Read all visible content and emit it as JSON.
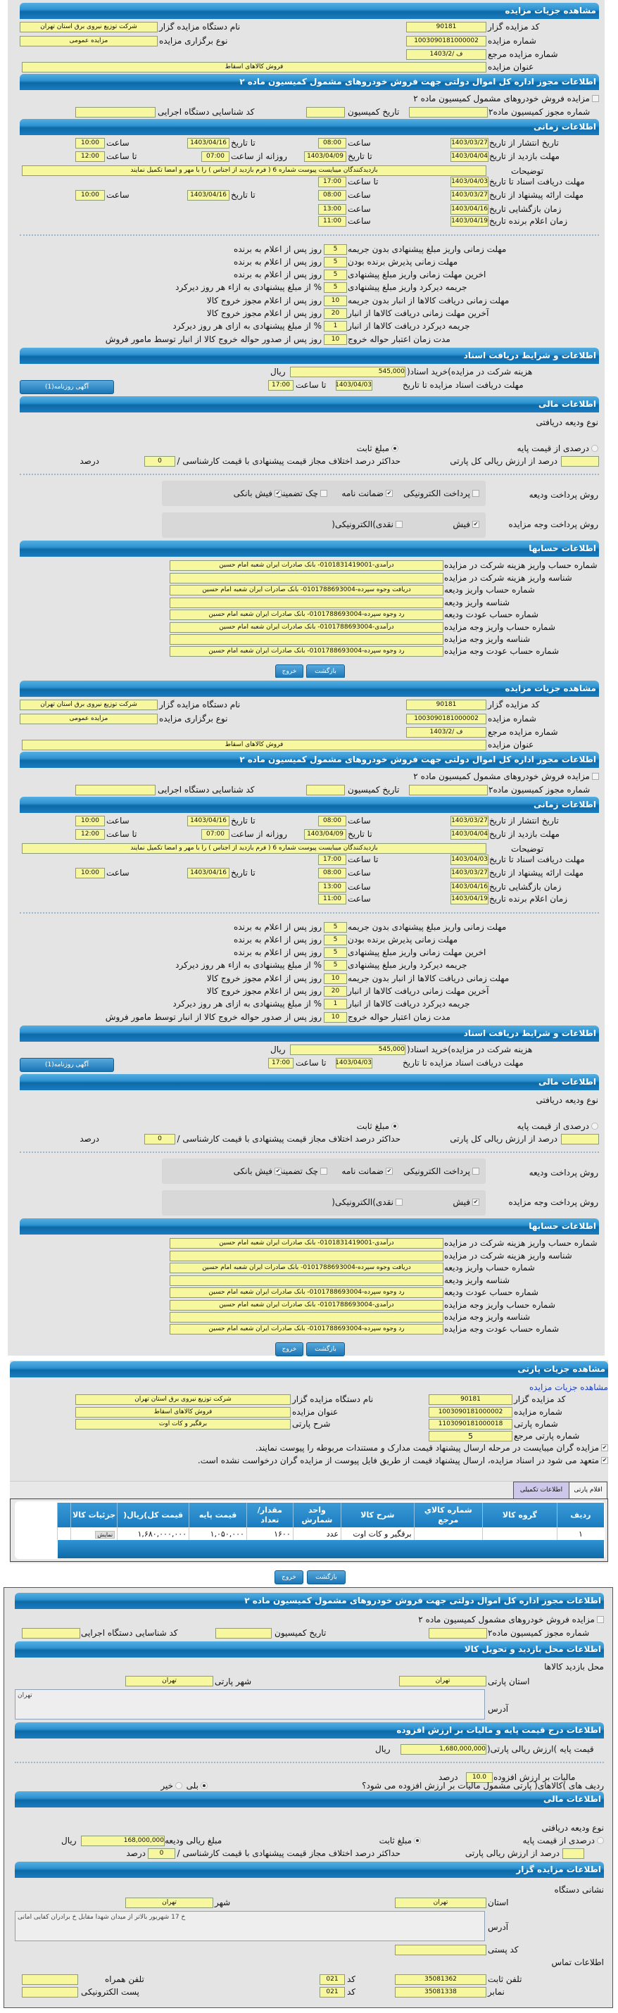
{
  "auction": {
    "title": "مشاهده جزیات مزایده",
    "org_code_label": "کد مزایده گزار",
    "org_code": "90181",
    "org_name_label": "نام دستگاه مزایده گزار",
    "org_name": "شرکت توزیع نیروی برق استان تهران",
    "number_label": "شماره مزایده",
    "number": "1003090181000002",
    "type_label": "نوع برگزاری مزایده",
    "type": "مزایده عمومی",
    "ref_label": "شماره مزایده مرجع",
    "ref": "ف /1403/2",
    "subject_label": "عنوان مزایده",
    "subject": "فروش کالاهای اسقاط"
  },
  "permit": {
    "title": "اطلاعات مجوز اداره کل اموال دولتی جهت فروش خودروهای مشمول کمیسیون ماده ۲",
    "checkbox_label": "مزایده فروش خودروهای مشمول کمیسیون ماده ۲",
    "checked": false,
    "permit_no_label": "شماره مجوز کمیسیون ماده۲",
    "date_label": "تاریخ کمیسیون",
    "exec_code_label": "کد شناسایی دستگاه اجرایی"
  },
  "timing": {
    "title": "اطلاعات زمانی",
    "publish": {
      "label": "تاریخ انتشار از تاریخ",
      "from_date": "1403/03/27",
      "time_label": "ساعت",
      "from_time": "08:00",
      "to_label": "تا تاریخ",
      "to_date": "1403/04/16",
      "to_time_label": "ساعت",
      "to_time": "10:00"
    },
    "visit": {
      "label": "مهلت بازدید از تاریخ",
      "from_date": "1403/04/04",
      "to_label": "تا تاریخ",
      "to_date": "1403/04/09",
      "daily_label": "روزانه از ساعت",
      "from_time": "07:00",
      "to_time_label": "تا ساعت",
      "to_time": "12:00"
    },
    "description_label": "توضیحات",
    "description": "بازدیدکنندگان میبایست پیوست شماره 6 ( فرم بازدید از اجناس ) را با مهر و امضا تکمیل نمایند",
    "docs_deadline": {
      "label": "مهلت دریافت اسناد تا تاریخ",
      "date": "1403/04/03",
      "time_label": "تا ساعت",
      "time": "17:00"
    },
    "offer": {
      "label": "مهلت ارائه پیشنهاد از تاریخ",
      "from_date": "1403/03/27",
      "time_label": "ساعت",
      "from_time": "08:00",
      "to_label": "تا تاریخ",
      "to_date": "1403/04/16",
      "to_time_label": "ساعت",
      "to_time": "10:00"
    },
    "opening": {
      "label": "زمان بازگشایی   تاریخ",
      "date": "1403/04/16",
      "time_label": "ساعت",
      "time": "13:00"
    },
    "winner": {
      "label": "زمان اعلام برنده   تاریخ",
      "date": "1403/04/19",
      "time_label": "ساعت",
      "time": "11:00"
    }
  },
  "deadlines": [
    {
      "label": "مهلت زمانی واریز مبلغ پیشنهادی بدون جریمه",
      "value": "5",
      "suffix": "روز پس از اعلام به برنده"
    },
    {
      "label": "مهلت زمانی پذیرش برنده بودن",
      "value": "5",
      "suffix": "روز پس از اعلام به برنده"
    },
    {
      "label": "اخرین مهلت زمانی واریز مبلغ پیشنهادی",
      "value": "5",
      "suffix": "روز پس از اعلام به برنده"
    },
    {
      "label": "جریمه دیرکرد واریز مبلغ پیشنهادی",
      "value": "5",
      "suffix": "% از مبلغ پیشنهادی به ازاء هر روز دیرکرد"
    },
    {
      "label": "مهلت زمانی دریافت کالاها از انبار بدون جریمه",
      "value": "10",
      "suffix": "روز پس از اعلام مجوز خروج کالا"
    },
    {
      "label": "آخرین مهلت زمانی دریافت کالاها از انبار",
      "value": "20",
      "suffix": "روز پس از اعلام مجوز خروج کالا"
    },
    {
      "label": "جریمه دیرکرد دریافت کالاها از انبار",
      "value": "1",
      "suffix": "% از مبلغ پیشنهادی به ازای هر روز دیرکرد"
    },
    {
      "label": "مدت زمان اعتبار حواله خروج",
      "value": "10",
      "suffix": "روز پس از صدور حواله خروج کالا از انبار توسط مامور فروش"
    }
  ],
  "documents": {
    "title": "اطلاعات و شرایط دریافت اسناد",
    "cost_label": "هزینه شرکت در مزایده)خرید اسناد(",
    "cost": "545,000",
    "currency": "ریال",
    "deadline_label": "مهلت دریافت اسناد مزایده تا تاریخ",
    "deadline_date": "1403/04/03",
    "until_time_label": "تا ساعت",
    "deadline_time": "17:00",
    "newspaper_button": "آگهی روزنامه(1)"
  },
  "finance": {
    "title": "اطلاعات مالی",
    "deposit_type_label": "نوع ودیعه دریافتی",
    "percent_option": "درصدی از قیمت پایه",
    "fixed_option": "مبلغ ثابت",
    "selected": "fixed",
    "percent_of_label": "درصد از ارزش ریالی کل پارتی",
    "max_diff_label": "حداکثر درصد اختلاف مجاز قیمت پیشنهادی با قیمت کارشناسی / پایه",
    "max_diff": "0",
    "percent_unit": "درصد",
    "deposit_method_label": "روش پرداخت ودیعه",
    "deposit_methods": [
      {
        "label": "پرداخت الکترونیکی",
        "checked": false
      },
      {
        "label": "ضمانت نامه",
        "checked": true
      },
      {
        "label": "چک تضمینی",
        "checked": false
      },
      {
        "label": "فیش بانکی",
        "checked": true
      }
    ],
    "payment_method_label": "روش پرداخت وجه مزایده",
    "payment_methods": [
      {
        "label": "فیش",
        "checked": true
      },
      {
        "label": "نقدی)الکترونیکی(",
        "checked": false
      }
    ]
  },
  "accounts": {
    "title": "اطلاعات حسابها",
    "rows": [
      {
        "label": "شماره حساب واریز هزینه شرکت در مزایده",
        "value": "درآمدی-0101831419001- بانک صادرات ایران شعبه امام حسین"
      },
      {
        "label": "شناسه واریز هزینه شرکت در مزایده",
        "value": ""
      },
      {
        "label": "شماره حساب واریز ودیعه",
        "value": "دریافت وجوه سپرده-0101788693004- بانک صادرات ایران شعبه امام حسین"
      },
      {
        "label": "شناسه واریز ودیعه",
        "value": ""
      },
      {
        "label": "شماره حساب عودت ودیعه",
        "value": "رد وجوه سپرده-0101788693004- بانک صادرات ایران شعبه امام حسین"
      },
      {
        "label": "شماره حساب واریز وجه مزایده",
        "value": "درآمدی-0101788693004- بانک صادرات ایران شعبه امام حسین"
      },
      {
        "label": "شناسه واریز وجه مزایده",
        "value": ""
      },
      {
        "label": "شماره حساب عودت وجه مزایده",
        "value": "رد وجوه سپرده-0101788693004- بانک صادرات ایران شعبه امام حسین"
      }
    ]
  },
  "buttons": {
    "back": "بازگشت",
    "exit": "خروج"
  },
  "party": {
    "title": "مشاهده جزیات پارتی",
    "auction_link": "مشاهده جزیات مزایده",
    "org_code_label": "کد مزایده گزار",
    "org_code": "90181",
    "org_name_label": "نام دستگاه مزایده گزار",
    "org_name": "شرکت توزیع نیروی برق استان تهران",
    "number_label": "شماره مزایده",
    "number": "1003090181000002",
    "subject_label": "عنوان مزایده",
    "subject": "فروش کالاهای اسقاط",
    "party_no_label": "شماره پارتی",
    "party_no": "1103090181000018",
    "party_desc_label": "شرح پارتی",
    "party_desc": "برقگیر و کات اوت",
    "party_ref_label": "شماره پارتی مرجع",
    "party_ref": "5",
    "notice1": "مزایده گران میبایست در مرحله ارسال پیشنهاد قیمت مدارک و مستندات مربوطه را پیوست نمایند.",
    "notice1_checked": true,
    "notice2": "متعهد می شود در اسناد مزایده، ارسال پیشنهاد قیمت از طریق فایل پیوست از مزایده گران درخواست نشده است.",
    "notice2_checked": true,
    "tabs": [
      {
        "label": "اقلام پارتی"
      },
      {
        "label": "اطلاعات تکمیلی"
      }
    ]
  },
  "items_table": {
    "columns": [
      "ردیف",
      "گروه کالا",
      "شماره کالاي مرجع",
      "شرح کالا",
      "واحد شمارش",
      "مقدار/ تعداد",
      "قیمت پایه",
      "قیمت کل)ریال(",
      "جزئیات کالا"
    ],
    "rows": [
      {
        "row": "۱",
        "group": "",
        "ref_code": "",
        "desc": "برقگیر و کات اوت",
        "unit": "عدد",
        "qty": "۱۶۰۰",
        "base_price": "۱,۰۵۰,۰۰۰",
        "total": "۱,۶۸۰,۰۰۰,۰۰۰",
        "details": "نمایش"
      }
    ]
  },
  "details": {
    "permit_title": "اطلاعات مجوز اداره کل اموال دولتی جهت فروش خودروهای مشمول کمیسیون ماده ۲",
    "location_title": "اطلاعات محل بازدید و تحویل کالا",
    "visit_place_label": "محل بازدید کالاها",
    "province_label": "استان پارتی",
    "province": "تهران",
    "city_label": "شهر پارتی",
    "city": "تهران",
    "address_label": "آدرس",
    "address": "تهران",
    "price_title": "اطلاعات درج قیمت پایه و مالیات بر ارزش افزوده",
    "base_price_label": "قیمت پایه )ارزش ریالی پارتی(",
    "base_price": "1,680,000,000",
    "currency": "ریال",
    "vat_label": "مالیات بر ارزش افزوده",
    "vat": "10.0",
    "vat_unit": "درصد",
    "vat_question": "ردیف های )کالاهای( پارتی مشمول مالیات بر ارزش افزوده می شود؟",
    "yes": "بلی",
    "no": "خیر",
    "vat_applies": true,
    "finance_title": "اطلاعات مالی",
    "deposit_type_label": "نوع ودیعه دریافتی",
    "percent_option": "درصدی از قیمت پایه",
    "fixed_option": "مبلغ ثابت",
    "deposit_amount_label": "مبلغ ریالی ودیعه",
    "deposit_amount": "168,000,000",
    "percent_of_label": "درصد از ارزش ریالی پارتی",
    "max_diff_label": "حداکثر درصد اختلاف مجاز قیمت پیشنهادی با قیمت کارشناسی / پایه",
    "max_diff": "0",
    "percent_unit": "درصد",
    "org_title": "اطلاعات مزایده گزار",
    "org_address_label": "نشانی دستگاه",
    "org_province_label": "استان",
    "org_province": "تهران",
    "org_city_label": "شهر",
    "org_city": "تهران",
    "org_address": "خ 17 شهریور بالاتر از میدان شهدا مقابل خ برادران کفایی امانی",
    "postal_label": "کد پستی",
    "contact_label": "اطلاعات تماس",
    "phone_label": "تلفن ثابت",
    "phone": "35081362",
    "code_label": "کد",
    "phone_code": "021",
    "mobile_label": "تلفن همراه",
    "fax_label": "نمابر",
    "fax": "35081338",
    "fax_code": "021",
    "email_label": "پست الکترونیکی"
  }
}
